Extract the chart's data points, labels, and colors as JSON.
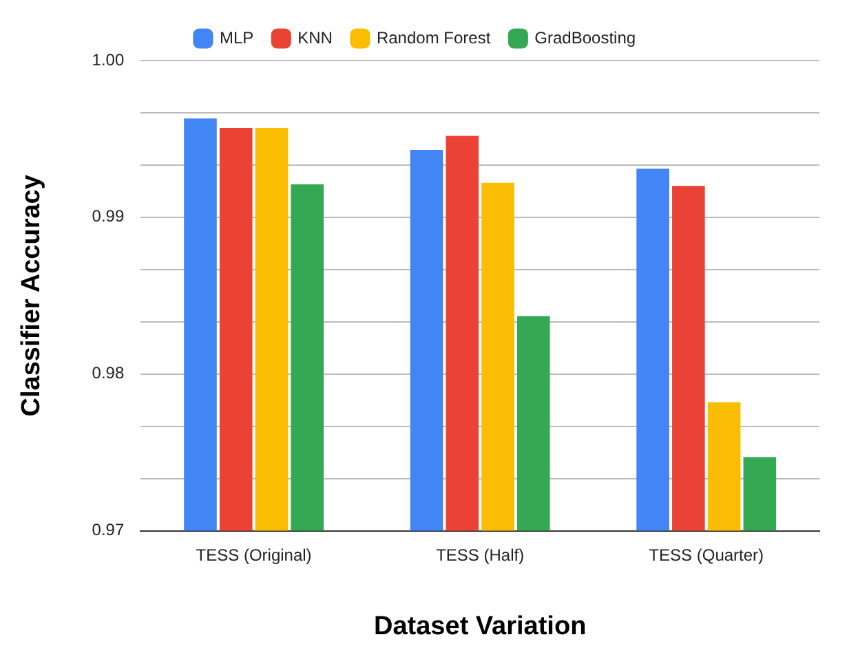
{
  "chart_data": {
    "type": "bar",
    "xlabel": "Dataset Variation",
    "ylabel": "Classifier Accuracy",
    "categories": [
      "TESS (Original)",
      "TESS (Half)",
      "TESS (Quarter)"
    ],
    "series": [
      {
        "name": "MLP",
        "color": "#4285f4",
        "values": [
          0.9963,
          0.9943,
          0.9931
        ]
      },
      {
        "name": "KNN",
        "color": "#ea4335",
        "values": [
          0.9957,
          0.9952,
          0.992
        ]
      },
      {
        "name": "Random Forest",
        "color": "#fbbc04",
        "values": [
          0.9957,
          0.9922,
          0.9782
        ]
      },
      {
        "name": "GradBoosting",
        "color": "#34a853",
        "values": [
          0.9921,
          0.9837,
          0.9747
        ]
      }
    ],
    "ylim": [
      0.97,
      1.0
    ],
    "yticks": [
      0.97,
      {
        "value": 0.97333,
        "label": null
      },
      {
        "value": 0.97667,
        "label": null
      },
      0.98,
      {
        "value": 0.98333,
        "label": null
      },
      {
        "value": 0.98667,
        "label": null
      },
      0.99,
      {
        "value": 0.99333,
        "label": null
      },
      {
        "value": 0.99667,
        "label": null
      },
      "1.00"
    ],
    "grid": "y",
    "legend": "top"
  }
}
